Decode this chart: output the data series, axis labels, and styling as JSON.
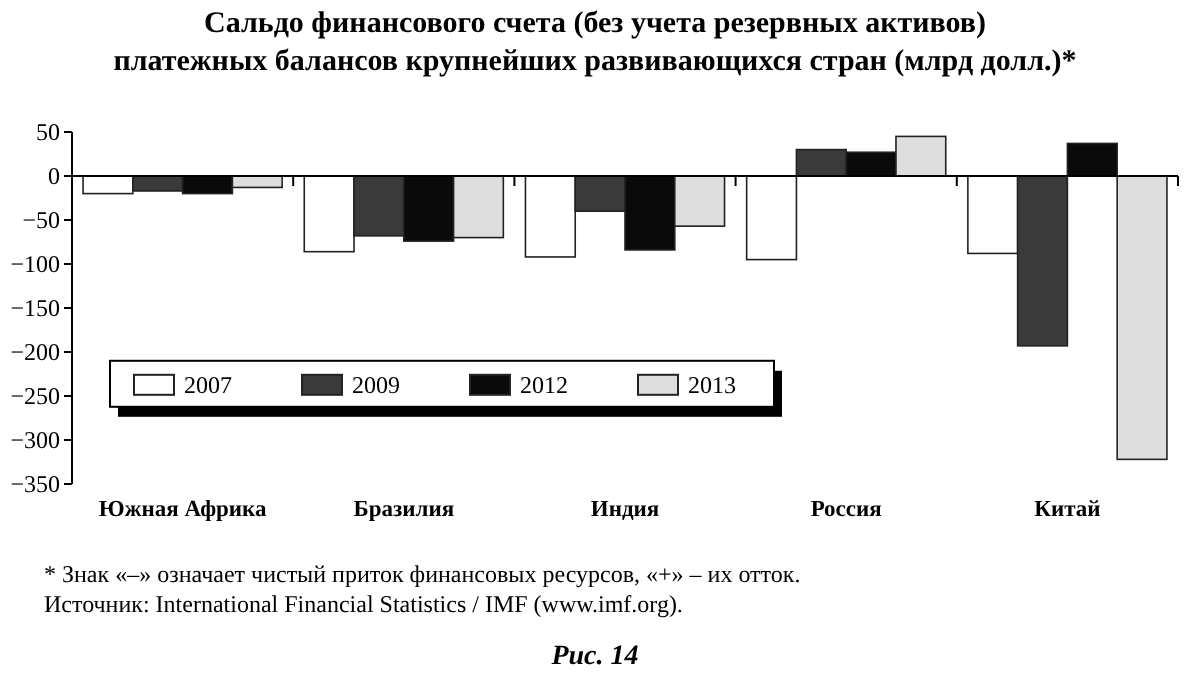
{
  "chart_data": {
    "type": "bar",
    "title": "Сальдо финансового счета (без учета резервных активов)\nплатежных балансов крупнейших развивающихся стран (млрд долл.)*",
    "categories": [
      "Южная Африка",
      "Бразилия",
      "Индия",
      "Россия",
      "Китай"
    ],
    "series": [
      {
        "name": "2007",
        "color": "#ffffff",
        "values": [
          -20,
          -86,
          -92,
          -95,
          -88
        ]
      },
      {
        "name": "2009",
        "color": "#3a3a3a",
        "values": [
          -17,
          -68,
          -40,
          30,
          -193
        ]
      },
      {
        "name": "2012",
        "color": "#0a0a0a",
        "values": [
          -20,
          -74,
          -84,
          27,
          37
        ]
      },
      {
        "name": "2013",
        "color": "#dedede",
        "values": [
          -13,
          -70,
          -57,
          45,
          -322
        ]
      }
    ],
    "ylim": [
      -350,
      50
    ],
    "yticks": [
      50,
      0,
      -50,
      -100,
      -150,
      -200,
      -250,
      -300,
      -350
    ],
    "grid": false,
    "ref_lines": [
      {
        "axis": "y",
        "value": 0,
        "color": "#000000"
      }
    ],
    "legend": "bottom",
    "annotations": [
      "* Знак «–» означает чистый приток финансовых ресурсов, «+» – их отток.",
      "Источник: International Financial Statistics / IMF (www.imf.org).",
      "Рис. 14"
    ]
  }
}
